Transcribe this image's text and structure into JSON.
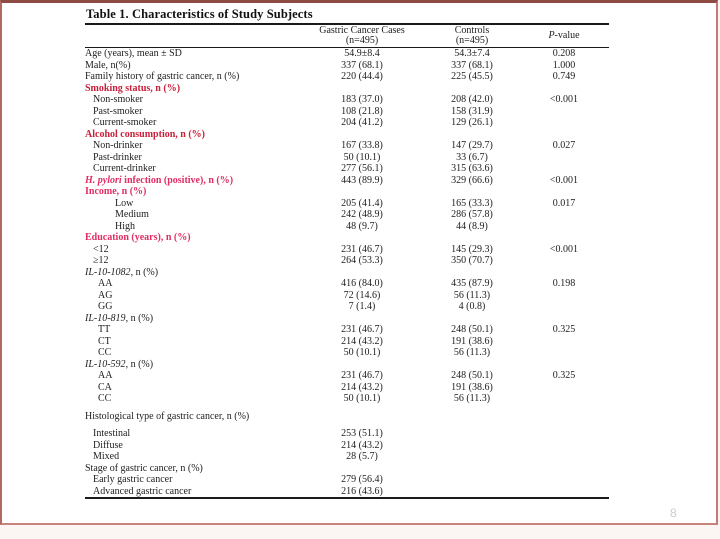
{
  "slide": {
    "page_number": "8"
  },
  "colors": {
    "section_red": "#c7203a",
    "section_pink": "#e02d63",
    "border_top": "#8e4b43",
    "border_side": "#b06a62",
    "border_side2": "#c47a72",
    "border_bottom": "#c8837d"
  },
  "table": {
    "title": "Table 1. Characteristics of Study Subjects",
    "header": {
      "cases_line1": "Gastric Cancer Cases",
      "cases_line2": "(n=495)",
      "controls_line1": "Controls",
      "controls_line2": "(n=495)",
      "pvalue_italic": "P",
      "pvalue_rest": "-value"
    },
    "rows": [
      {
        "type": "plain",
        "label": "Age (years), mean ± SD",
        "cases": "54.9±8.4",
        "controls": "54.3±7.4",
        "p": "0.208"
      },
      {
        "type": "plain",
        "label": "Male, n(%)",
        "cases": "337 (68.1)",
        "controls": "337 (68.1)",
        "p": "1.000"
      },
      {
        "type": "plain",
        "label": "Family history of gastric cancer, n (%)",
        "cases": "220 (44.4)",
        "controls": "225 (45.5)",
        "p": "0.749"
      },
      {
        "type": "red",
        "label": "Smoking status, n (%)"
      },
      {
        "type": "sub",
        "label": "Non-smoker",
        "cases": "183 (37.0)",
        "controls": "208 (42.0)",
        "p": "<0.001"
      },
      {
        "type": "sub",
        "label": "Past-smoker",
        "cases": "108 (21.8)",
        "controls": "158 (31.9)"
      },
      {
        "type": "sub",
        "label": "Current-smoker",
        "cases": "204 (41.2)",
        "controls": "129 (26.1)"
      },
      {
        "type": "red",
        "label": "Alcohol consumption, n (%)"
      },
      {
        "type": "sub",
        "label": "Non-drinker",
        "cases": "167 (33.8)",
        "controls": "147 (29.7)",
        "p": "0.027"
      },
      {
        "type": "sub",
        "label": "Past-drinker",
        "cases": "50 (10.1)",
        "controls": "33 (6.7)"
      },
      {
        "type": "sub",
        "label": "Current-drinker",
        "cases": "277 (56.1)",
        "controls": "315 (63.6)"
      },
      {
        "type": "pink",
        "label_italic": "H. pylori",
        "label": " infection (positive), n (%)",
        "cases": "443 (89.9)",
        "controls": "329 (66.6)",
        "p": "<0.001"
      },
      {
        "type": "pink",
        "label": "Income, n (%)"
      },
      {
        "type": "income",
        "label": "Low",
        "cases": "205 (41.4)",
        "controls": "165 (33.3)",
        "p": "0.017"
      },
      {
        "type": "income",
        "label": "Medium",
        "cases": "242 (48.9)",
        "controls": "286 (57.8)"
      },
      {
        "type": "income",
        "label": "High",
        "cases": "48 (9.7)",
        "controls": "44 (8.9)"
      },
      {
        "type": "pink",
        "label": "Education (years), n (%)"
      },
      {
        "type": "sub",
        "label": "<12",
        "cases": "231 (46.7)",
        "controls": "145 (29.3)",
        "p": "<0.001"
      },
      {
        "type": "sub",
        "label": "≥12",
        "cases": "264 (53.3)",
        "controls": "350 (70.7)"
      },
      {
        "type": "gene",
        "label_italic": "IL-10-1082",
        "label": ", n (%)"
      },
      {
        "type": "geno",
        "label": "AA",
        "cases": "416 (84.0)",
        "controls": "435 (87.9)",
        "p": "0.198"
      },
      {
        "type": "geno",
        "label": "AG",
        "cases": "72 (14.6)",
        "controls": "56 (11.3)"
      },
      {
        "type": "geno",
        "label": "GG",
        "cases": "7 (1.4)",
        "controls": "4 (0.8)"
      },
      {
        "type": "gene",
        "label_italic": "IL-10-819",
        "label": ", n (%)"
      },
      {
        "type": "geno",
        "label": "TT",
        "cases": "231 (46.7)",
        "controls": "248 (50.1)",
        "p": "0.325"
      },
      {
        "type": "geno",
        "label": "CT",
        "cases": "214 (43.2)",
        "controls": "191 (38.6)"
      },
      {
        "type": "geno",
        "label": "CC",
        "cases": "50 (10.1)",
        "controls": "56 (11.3)"
      },
      {
        "type": "gene",
        "label_italic": "IL-10-592",
        "label": ", n (%)"
      },
      {
        "type": "geno",
        "label": "AA",
        "cases": "231 (46.7)",
        "controls": "248 (50.1)",
        "p": "0.325"
      },
      {
        "type": "geno",
        "label": "CA",
        "cases": "214 (43.2)",
        "controls": "191 (38.6)"
      },
      {
        "type": "geno",
        "label": "CC",
        "cases": "50 (10.1)",
        "controls": "56 (11.3)"
      },
      {
        "type": "spacer"
      },
      {
        "type": "plain",
        "label": "Histological type of gastric cancer, n (%)"
      },
      {
        "type": "spacer"
      },
      {
        "type": "sub",
        "label": "Intestinal",
        "cases": "253 (51.1)"
      },
      {
        "type": "sub",
        "label": "Diffuse",
        "cases": "214 (43.2)"
      },
      {
        "type": "sub",
        "label": "Mixed",
        "cases": "28 (5.7)"
      },
      {
        "type": "plain",
        "label": "Stage of gastric cancer, n (%)"
      },
      {
        "type": "sub",
        "label": "Early gastric cancer",
        "cases": "279 (56.4)"
      },
      {
        "type": "sub",
        "label": "Advanced gastric cancer",
        "cases": "216 (43.6)"
      }
    ]
  }
}
